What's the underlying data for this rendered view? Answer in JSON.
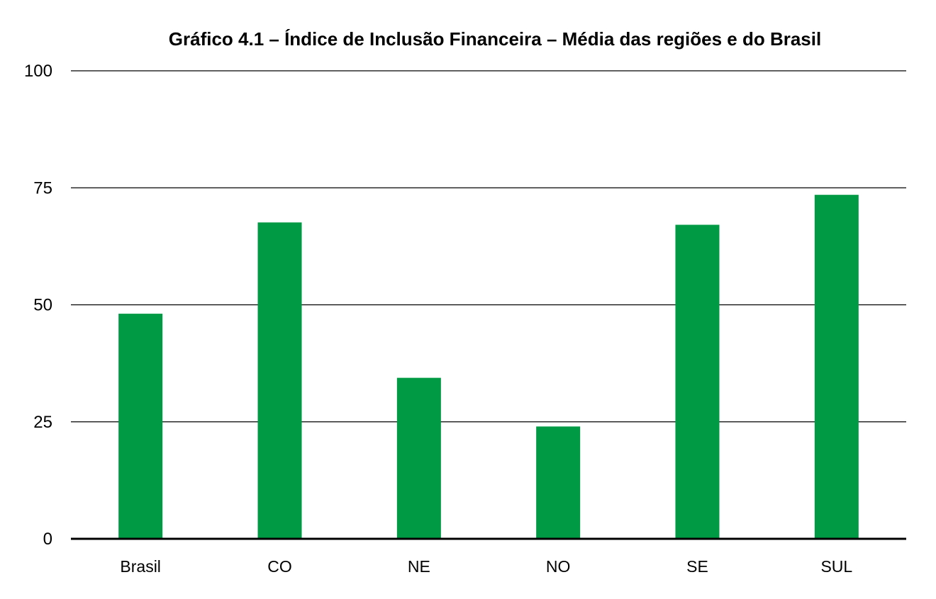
{
  "chart_data": {
    "type": "bar",
    "title": "Gráfico 4.1 – Índice de Inclusão Financeira – Média das regiões e do Brasil",
    "categories": [
      "Brasil",
      "CO",
      "NE",
      "NO",
      "SE",
      "SUL"
    ],
    "values": [
      48.1,
      67.6,
      34.4,
      24.0,
      67.1,
      73.5
    ],
    "ylim": [
      0,
      100
    ],
    "yticks": [
      "0",
      "25",
      "50",
      "75",
      "100"
    ],
    "xlabel": "",
    "ylabel": "",
    "grid": true,
    "bar_color": "#009a44"
  }
}
